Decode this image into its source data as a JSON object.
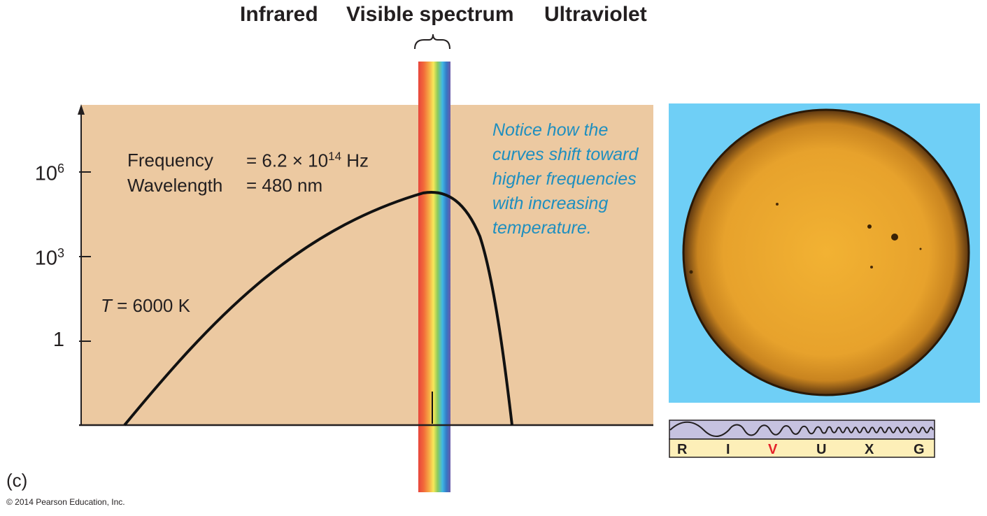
{
  "header": {
    "infrared": "Infrared",
    "visible": "Visible spectrum",
    "ultraviolet": "Ultraviolet"
  },
  "annotation": {
    "frequency_label": "Frequency",
    "frequency_value_prefix": "= 6.2 × 10",
    "frequency_exponent": "14",
    "frequency_unit": " Hz",
    "wavelength_label": "Wavelength",
    "wavelength_value": "= 480 nm",
    "temperature_symbol": "T",
    "temperature_value": " = 6000 K"
  },
  "note": {
    "lines": [
      "Notice how the",
      "curves shift toward",
      "higher frequencies",
      "with increasing",
      "temperature."
    ]
  },
  "chart_data": {
    "type": "line",
    "title": "",
    "xlabel": "",
    "ylabel": "",
    "yscale": "log",
    "y_ticks": [
      {
        "base": "1",
        "exp": "",
        "value": 1
      },
      {
        "base": "10",
        "exp": "3",
        "value": 1000
      },
      {
        "base": "10",
        "exp": "6",
        "value": 1000000
      }
    ],
    "series": [
      {
        "temperature_K": 6000,
        "peak_frequency_Hz": 620000000000000.0,
        "peak_wavelength_nm": 480
      }
    ],
    "regions": [
      "Infrared",
      "Visible spectrum",
      "Ultraviolet"
    ],
    "colors": {
      "plot_background": "#ecc9a1",
      "curve": "#111111",
      "note": "#1f8fbf"
    }
  },
  "spectrum_band": {
    "letters": [
      {
        "letter": "R",
        "highlight": false
      },
      {
        "letter": "I",
        "highlight": false
      },
      {
        "letter": "V",
        "highlight": true
      },
      {
        "letter": "U",
        "highlight": false
      },
      {
        "letter": "X",
        "highlight": false
      },
      {
        "letter": "G",
        "highlight": false
      }
    ],
    "highlight_color": "#e4232a"
  },
  "caption": "(c)",
  "copyright": "© 2014 Pearson Education, Inc."
}
